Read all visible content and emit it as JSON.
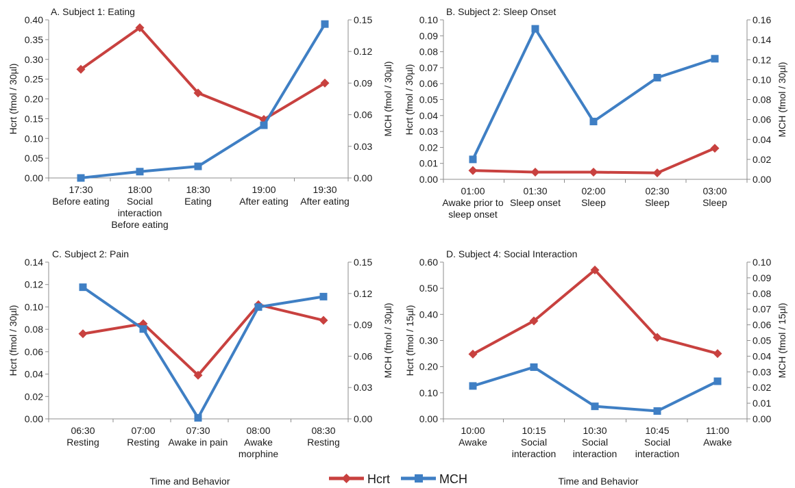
{
  "figure": {
    "footer_left": "Time and Behavior",
    "footer_right": "Time and Behavior",
    "legend": [
      {
        "label": "Hcrt",
        "color": "#c8413f",
        "marker": "diamond"
      },
      {
        "label": "MCH",
        "color": "#3f7fc4",
        "marker": "square"
      }
    ]
  },
  "chart_data": [
    {
      "type": "line",
      "title": "A.  Subject 1:  Eating",
      "categories": [
        "17:30\nBefore eating",
        "18:00\nSocial\ninteraction\nBefore eating",
        "18:30\nEating",
        "19:00\nAfter eating",
        "19:30\nAfter eating"
      ],
      "left_axis": {
        "label": "Hcrt (fmol / 30µl)",
        "ylim": [
          0,
          0.4
        ],
        "ticks": [
          "0.00",
          "0.05",
          "0.10",
          "0.15",
          "0.20",
          "0.25",
          "0.30",
          "0.35",
          "0.40"
        ]
      },
      "right_axis": {
        "label": "MCH (fmol / 30µl)",
        "ylim": [
          0,
          0.15
        ],
        "ticks": [
          "0.00",
          "0.03",
          "0.06",
          "0.09",
          "0.12",
          "0.15"
        ]
      },
      "series": [
        {
          "name": "Hcrt",
          "axis": "left",
          "values": [
            0.275,
            0.38,
            0.215,
            0.148,
            0.24
          ]
        },
        {
          "name": "MCH",
          "axis": "right",
          "values": [
            0.0,
            0.006,
            0.011,
            0.05,
            0.146
          ]
        }
      ]
    },
    {
      "type": "line",
      "title": "B.  Subject 2:  Sleep Onset",
      "categories": [
        "01:00\nAwake prior to\nsleep onset",
        "01:30\nSleep onset",
        "02:00\nSleep",
        "02:30\nSleep",
        "03:00\nSleep"
      ],
      "left_axis": {
        "label": "Hcrt (fmol / 30µl)",
        "ylim": [
          0,
          0.1
        ],
        "ticks": [
          "0.00",
          "0.01",
          "0.02",
          "0.03",
          "0.04",
          "0.05",
          "0.06",
          "0.07",
          "0.08",
          "0.09",
          "0.10"
        ]
      },
      "right_axis": {
        "label": "MCH (fmol / 30µl)",
        "ylim": [
          0,
          0.16
        ],
        "ticks": [
          "0.00",
          "0.02",
          "0.04",
          "0.06",
          "0.08",
          "0.10",
          "0.12",
          "0.14",
          "0.16"
        ]
      },
      "series": [
        {
          "name": "Hcrt",
          "axis": "left",
          "values": [
            0.0055,
            0.0045,
            0.0045,
            0.004,
            0.0195
          ]
        },
        {
          "name": "MCH",
          "axis": "right",
          "values": [
            0.02,
            0.151,
            0.058,
            0.102,
            0.121
          ]
        }
      ]
    },
    {
      "type": "line",
      "title": "C.  Subject 2:  Pain",
      "categories": [
        "06:30\nResting",
        "07:00\nResting",
        "07:30\nAwake in pain",
        "08:00\nAwake\nmorphine",
        "08:30\nResting"
      ],
      "left_axis": {
        "label": "Hcrt (fmol / 30µl)",
        "ylim": [
          0,
          0.14
        ],
        "ticks": [
          "0.00",
          "0.02",
          "0.04",
          "0.06",
          "0.08",
          "0.10",
          "0.12",
          "0.14"
        ]
      },
      "right_axis": {
        "label": "MCH (fmol / 30µl)",
        "ylim": [
          0,
          0.15
        ],
        "ticks": [
          "0.00",
          "0.03",
          "0.06",
          "0.09",
          "0.12",
          "0.15"
        ]
      },
      "series": [
        {
          "name": "Hcrt",
          "axis": "left",
          "values": [
            0.076,
            0.085,
            0.039,
            0.102,
            0.088
          ]
        },
        {
          "name": "MCH",
          "axis": "right",
          "values": [
            0.126,
            0.086,
            0.001,
            0.107,
            0.117
          ]
        }
      ]
    },
    {
      "type": "line",
      "title": "D.  Subject 4:  Social Interaction",
      "categories": [
        "10:00\nAwake",
        "10:15\nSocial\ninteraction",
        "10:30\nSocial\ninteraction",
        "10:45\nSocial\ninteraction",
        "11:00\nAwake"
      ],
      "left_axis": {
        "label": "Hcrt (fmol / 15µl)",
        "ylim": [
          0,
          0.6
        ],
        "ticks": [
          "0.00",
          "0.10",
          "0.20",
          "0.30",
          "0.40",
          "0.50",
          "0.60"
        ]
      },
      "right_axis": {
        "label": "MCH (fmol / 15µl)",
        "ylim": [
          0,
          0.1
        ],
        "ticks": [
          "0.00",
          "0.01",
          "0.02",
          "0.03",
          "0.04",
          "0.05",
          "0.06",
          "0.07",
          "0.08",
          "0.09",
          "0.10"
        ]
      },
      "series": [
        {
          "name": "Hcrt",
          "axis": "left",
          "values": [
            0.248,
            0.375,
            0.57,
            0.312,
            0.25
          ]
        },
        {
          "name": "MCH",
          "axis": "right",
          "values": [
            0.021,
            0.033,
            0.008,
            0.005,
            0.024
          ]
        }
      ]
    }
  ]
}
